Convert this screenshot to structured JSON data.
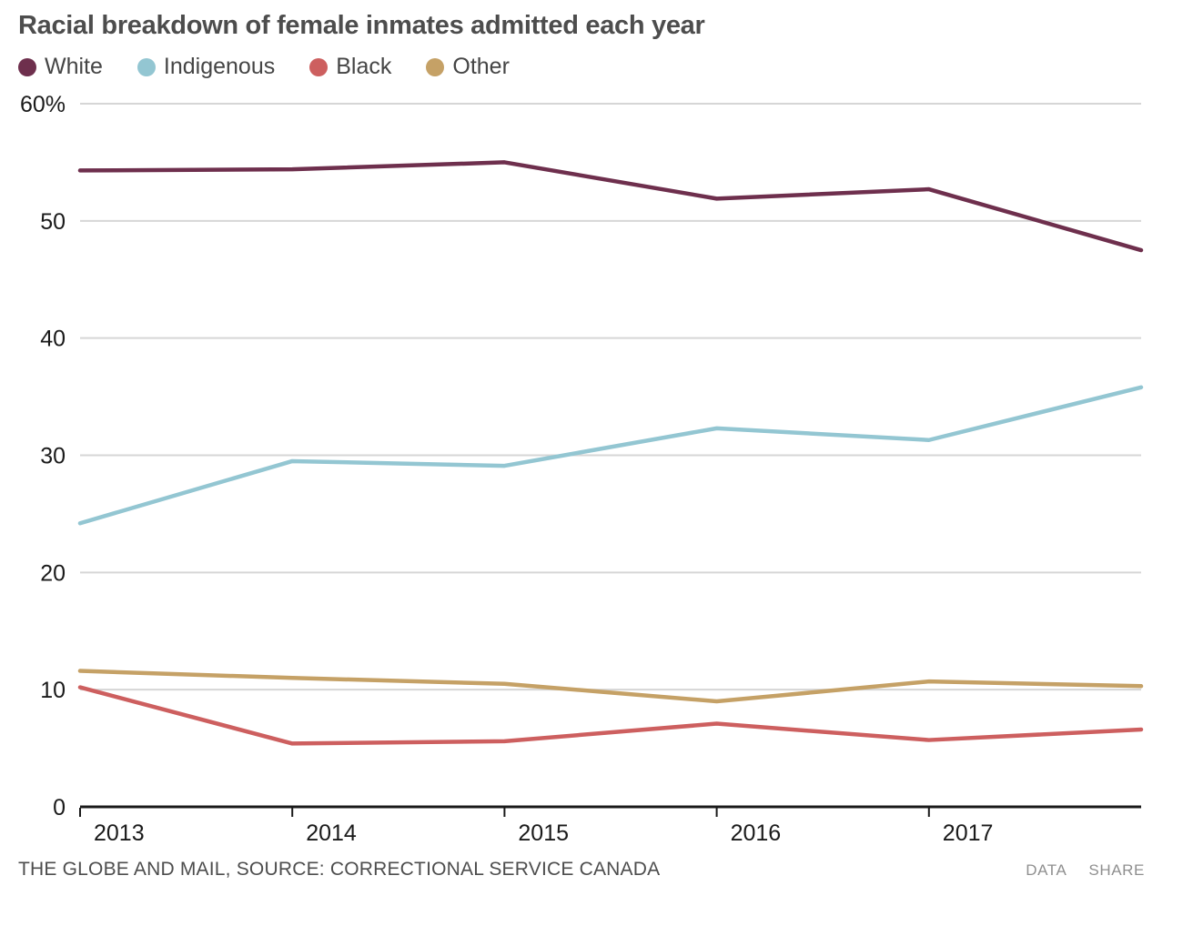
{
  "title": "Racial breakdown of female inmates admitted each year",
  "legend": [
    {
      "label": "White",
      "color": "#6e2f4d"
    },
    {
      "label": "Indigenous",
      "color": "#93c6d2"
    },
    {
      "label": "Black",
      "color": "#cd5f5f"
    },
    {
      "label": "Other",
      "color": "#c5a166"
    }
  ],
  "chart_data": {
    "type": "line",
    "x": [
      2013,
      2014,
      2015,
      2016,
      2017,
      2018
    ],
    "x_tick_labels": [
      "2013",
      "2014",
      "2015",
      "2016",
      "2017"
    ],
    "series": [
      {
        "name": "White",
        "color": "#6e2f4d",
        "values": [
          54.3,
          54.4,
          55.0,
          51.9,
          52.7,
          47.5
        ]
      },
      {
        "name": "Indigenous",
        "color": "#93c6d2",
        "values": [
          24.2,
          29.5,
          29.1,
          32.3,
          31.3,
          35.8
        ]
      },
      {
        "name": "Black",
        "color": "#cd5f5f",
        "values": [
          10.2,
          5.4,
          5.6,
          7.1,
          5.7,
          6.6
        ]
      },
      {
        "name": "Other",
        "color": "#c5a166",
        "values": [
          11.6,
          11.0,
          10.5,
          9.0,
          10.7,
          10.3
        ]
      }
    ],
    "ylim": [
      0,
      60
    ],
    "y_ticks": [
      0,
      10,
      20,
      30,
      40,
      50,
      60
    ],
    "y_tick_labels": [
      "0",
      "10",
      "20",
      "30",
      "40",
      "50",
      "60%"
    ],
    "grid": true,
    "legend_position": "top",
    "colors": {
      "grid": "#d6d6d6",
      "axis": "#1a1a1a",
      "tick_text": "#1a1a1a"
    }
  },
  "footer": {
    "source": "THE GLOBE AND MAIL, SOURCE: CORRECTIONAL SERVICE CANADA",
    "data_label": "DATA",
    "share_label": "SHARE"
  }
}
